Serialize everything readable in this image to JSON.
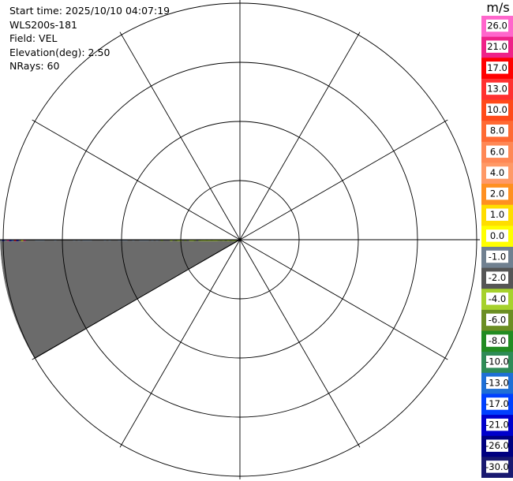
{
  "header": {
    "start_time": "Start time: 2025/10/10 04:07:19",
    "instrument": "WLS200s-181",
    "field": "Field: VEL",
    "elevation": "Elevation(deg): 2.50",
    "nrays": "NRays: 60"
  },
  "colorbar": {
    "unit": "m/s",
    "labels": [
      "26.0",
      "21.0",
      "17.0",
      "13.0",
      "10.0",
      "8.0",
      "6.0",
      "4.0",
      "2.0",
      "1.0",
      "0.0",
      "-1.0",
      "-2.0",
      "-4.0",
      "-6.0",
      "-8.0",
      "-10.0",
      "-13.0",
      "-17.0",
      "-21.0",
      "-26.0",
      "-30.0"
    ],
    "colors": [
      "#ff66cc",
      "#ee2288",
      "#ff0000",
      "#ff3030",
      "#ff4a1a",
      "#ff6a33",
      "#ff8855",
      "#ff9966",
      "#ff9020",
      "#ffdd00",
      "#ffff00",
      "#708090",
      "#555555",
      "#a6d12c",
      "#6b8e23",
      "#228b22",
      "#2e8b57",
      "#1e6fd6",
      "#0040ff",
      "#0000cc",
      "#000080",
      "#191970"
    ]
  },
  "chart_data": {
    "type": "ppi",
    "field": "VEL",
    "units": "m/s",
    "range_rings": 4,
    "radials": 12,
    "sector": {
      "azimuth_start_deg": 270,
      "azimuth_end_deg": 236,
      "near_zero_band_color": "#6b6b6b",
      "dominant_values_m_s": [
        0.0,
        -1.0,
        2.0,
        -2.0
      ]
    }
  }
}
